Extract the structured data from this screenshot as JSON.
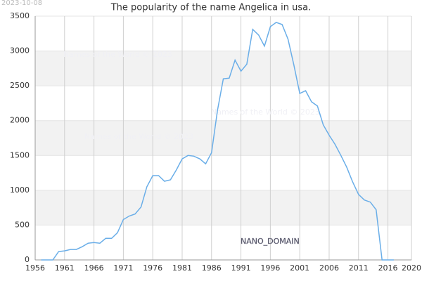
{
  "chart_data": {
    "type": "line",
    "title": "The popularity of the name Angelica in usa.",
    "date_stamp": "2023-10-08",
    "watermarks": [
      "Names of the World © 2023",
      "Names of the World © 2023",
      "Names of the World © 2023"
    ],
    "domain_label": "NANO_DOMAIN",
    "x": [
      1957,
      1958,
      1959,
      1960,
      1961,
      1962,
      1963,
      1964,
      1965,
      1966,
      1967,
      1968,
      1969,
      1970,
      1971,
      1972,
      1973,
      1974,
      1975,
      1976,
      1977,
      1978,
      1979,
      1980,
      1981,
      1982,
      1983,
      1984,
      1985,
      1986,
      1987,
      1988,
      1989,
      1990,
      1991,
      1992,
      1993,
      1994,
      1995,
      1996,
      1997,
      1998,
      1999,
      2000,
      2001,
      2002,
      2003,
      2004,
      2005,
      2006,
      2007,
      2008,
      2009,
      2010,
      2011,
      2012,
      2013,
      2014,
      2015,
      2016,
      2017
    ],
    "values": [
      0,
      0,
      0,
      120,
      130,
      150,
      150,
      190,
      240,
      250,
      240,
      310,
      310,
      390,
      580,
      630,
      660,
      760,
      1050,
      1210,
      1210,
      1130,
      1150,
      1290,
      1450,
      1500,
      1490,
      1450,
      1380,
      1540,
      2140,
      2600,
      2610,
      2870,
      2710,
      2810,
      3310,
      3230,
      3070,
      3350,
      3410,
      3380,
      3170,
      2800,
      2390,
      2430,
      2270,
      2210,
      1940,
      1790,
      1660,
      1500,
      1330,
      1120,
      940,
      860,
      830,
      720,
      0,
      0,
      0
    ],
    "color": "#6aaee8",
    "xlim": [
      1956,
      2020
    ],
    "xticks": [
      1956,
      1961,
      1966,
      1971,
      1976,
      1981,
      1986,
      1991,
      1996,
      2001,
      2006,
      2011,
      2016,
      2020
    ],
    "ylim": [
      0,
      3500
    ],
    "yticks": [
      0,
      500,
      1000,
      1500,
      2000,
      2500,
      3000,
      3500
    ],
    "grid": true
  }
}
